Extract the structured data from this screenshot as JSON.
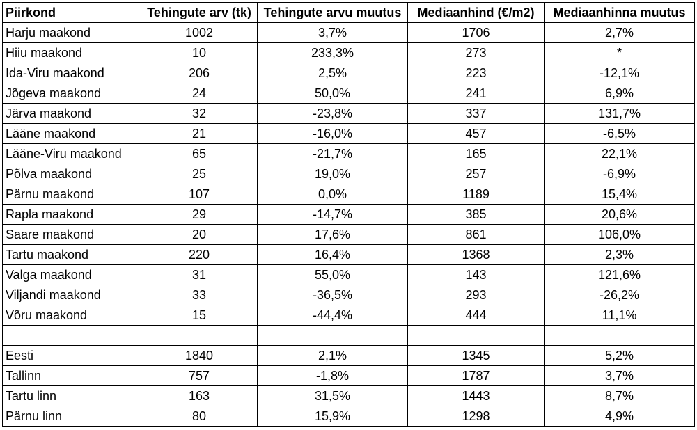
{
  "table": {
    "headers": [
      "Piirkond",
      "Tehingute arv (tk)",
      "Tehingute arvu muutus",
      "Mediaanhind (€/m2)",
      "Mediaanhinna muutus"
    ],
    "rows": [
      [
        "Harju maakond",
        "1002",
        "3,7%",
        "1706",
        "2,7%"
      ],
      [
        "Hiiu maakond",
        "10",
        "233,3%",
        "273",
        "*"
      ],
      [
        "Ida-Viru maakond",
        "206",
        "2,5%",
        "223",
        "-12,1%"
      ],
      [
        "Jõgeva maakond",
        "24",
        "50,0%",
        "241",
        "6,9%"
      ],
      [
        "Järva maakond",
        "32",
        "-23,8%",
        "337",
        "131,7%"
      ],
      [
        "Lääne maakond",
        "21",
        "-16,0%",
        "457",
        "-6,5%"
      ],
      [
        "Lääne-Viru maakond",
        "65",
        "-21,7%",
        "165",
        "22,1%"
      ],
      [
        "Põlva maakond",
        "25",
        "19,0%",
        "257",
        "-6,9%"
      ],
      [
        "Pärnu maakond",
        "107",
        "0,0%",
        "1189",
        "15,4%"
      ],
      [
        "Rapla maakond",
        "29",
        "-14,7%",
        "385",
        "20,6%"
      ],
      [
        "Saare maakond",
        "20",
        "17,6%",
        "861",
        "106,0%"
      ],
      [
        "Tartu maakond",
        "220",
        "16,4%",
        "1368",
        "2,3%"
      ],
      [
        "Valga maakond",
        "31",
        "55,0%",
        "143",
        "121,6%"
      ],
      [
        "Viljandi maakond",
        "33",
        "-36,5%",
        "293",
        "-26,2%"
      ],
      [
        "Võru maakond",
        "15",
        "-44,4%",
        "444",
        "11,1%"
      ],
      [
        "",
        "",
        "",
        "",
        ""
      ],
      [
        "Eesti",
        "1840",
        "2,1%",
        "1345",
        "5,2%"
      ],
      [
        "Tallinn",
        "757",
        "-1,8%",
        "1787",
        "3,7%"
      ],
      [
        "Tartu linn",
        "163",
        "31,5%",
        "1443",
        "8,7%"
      ],
      [
        "Pärnu linn",
        "80",
        "15,9%",
        "1298",
        "4,9%"
      ]
    ]
  }
}
